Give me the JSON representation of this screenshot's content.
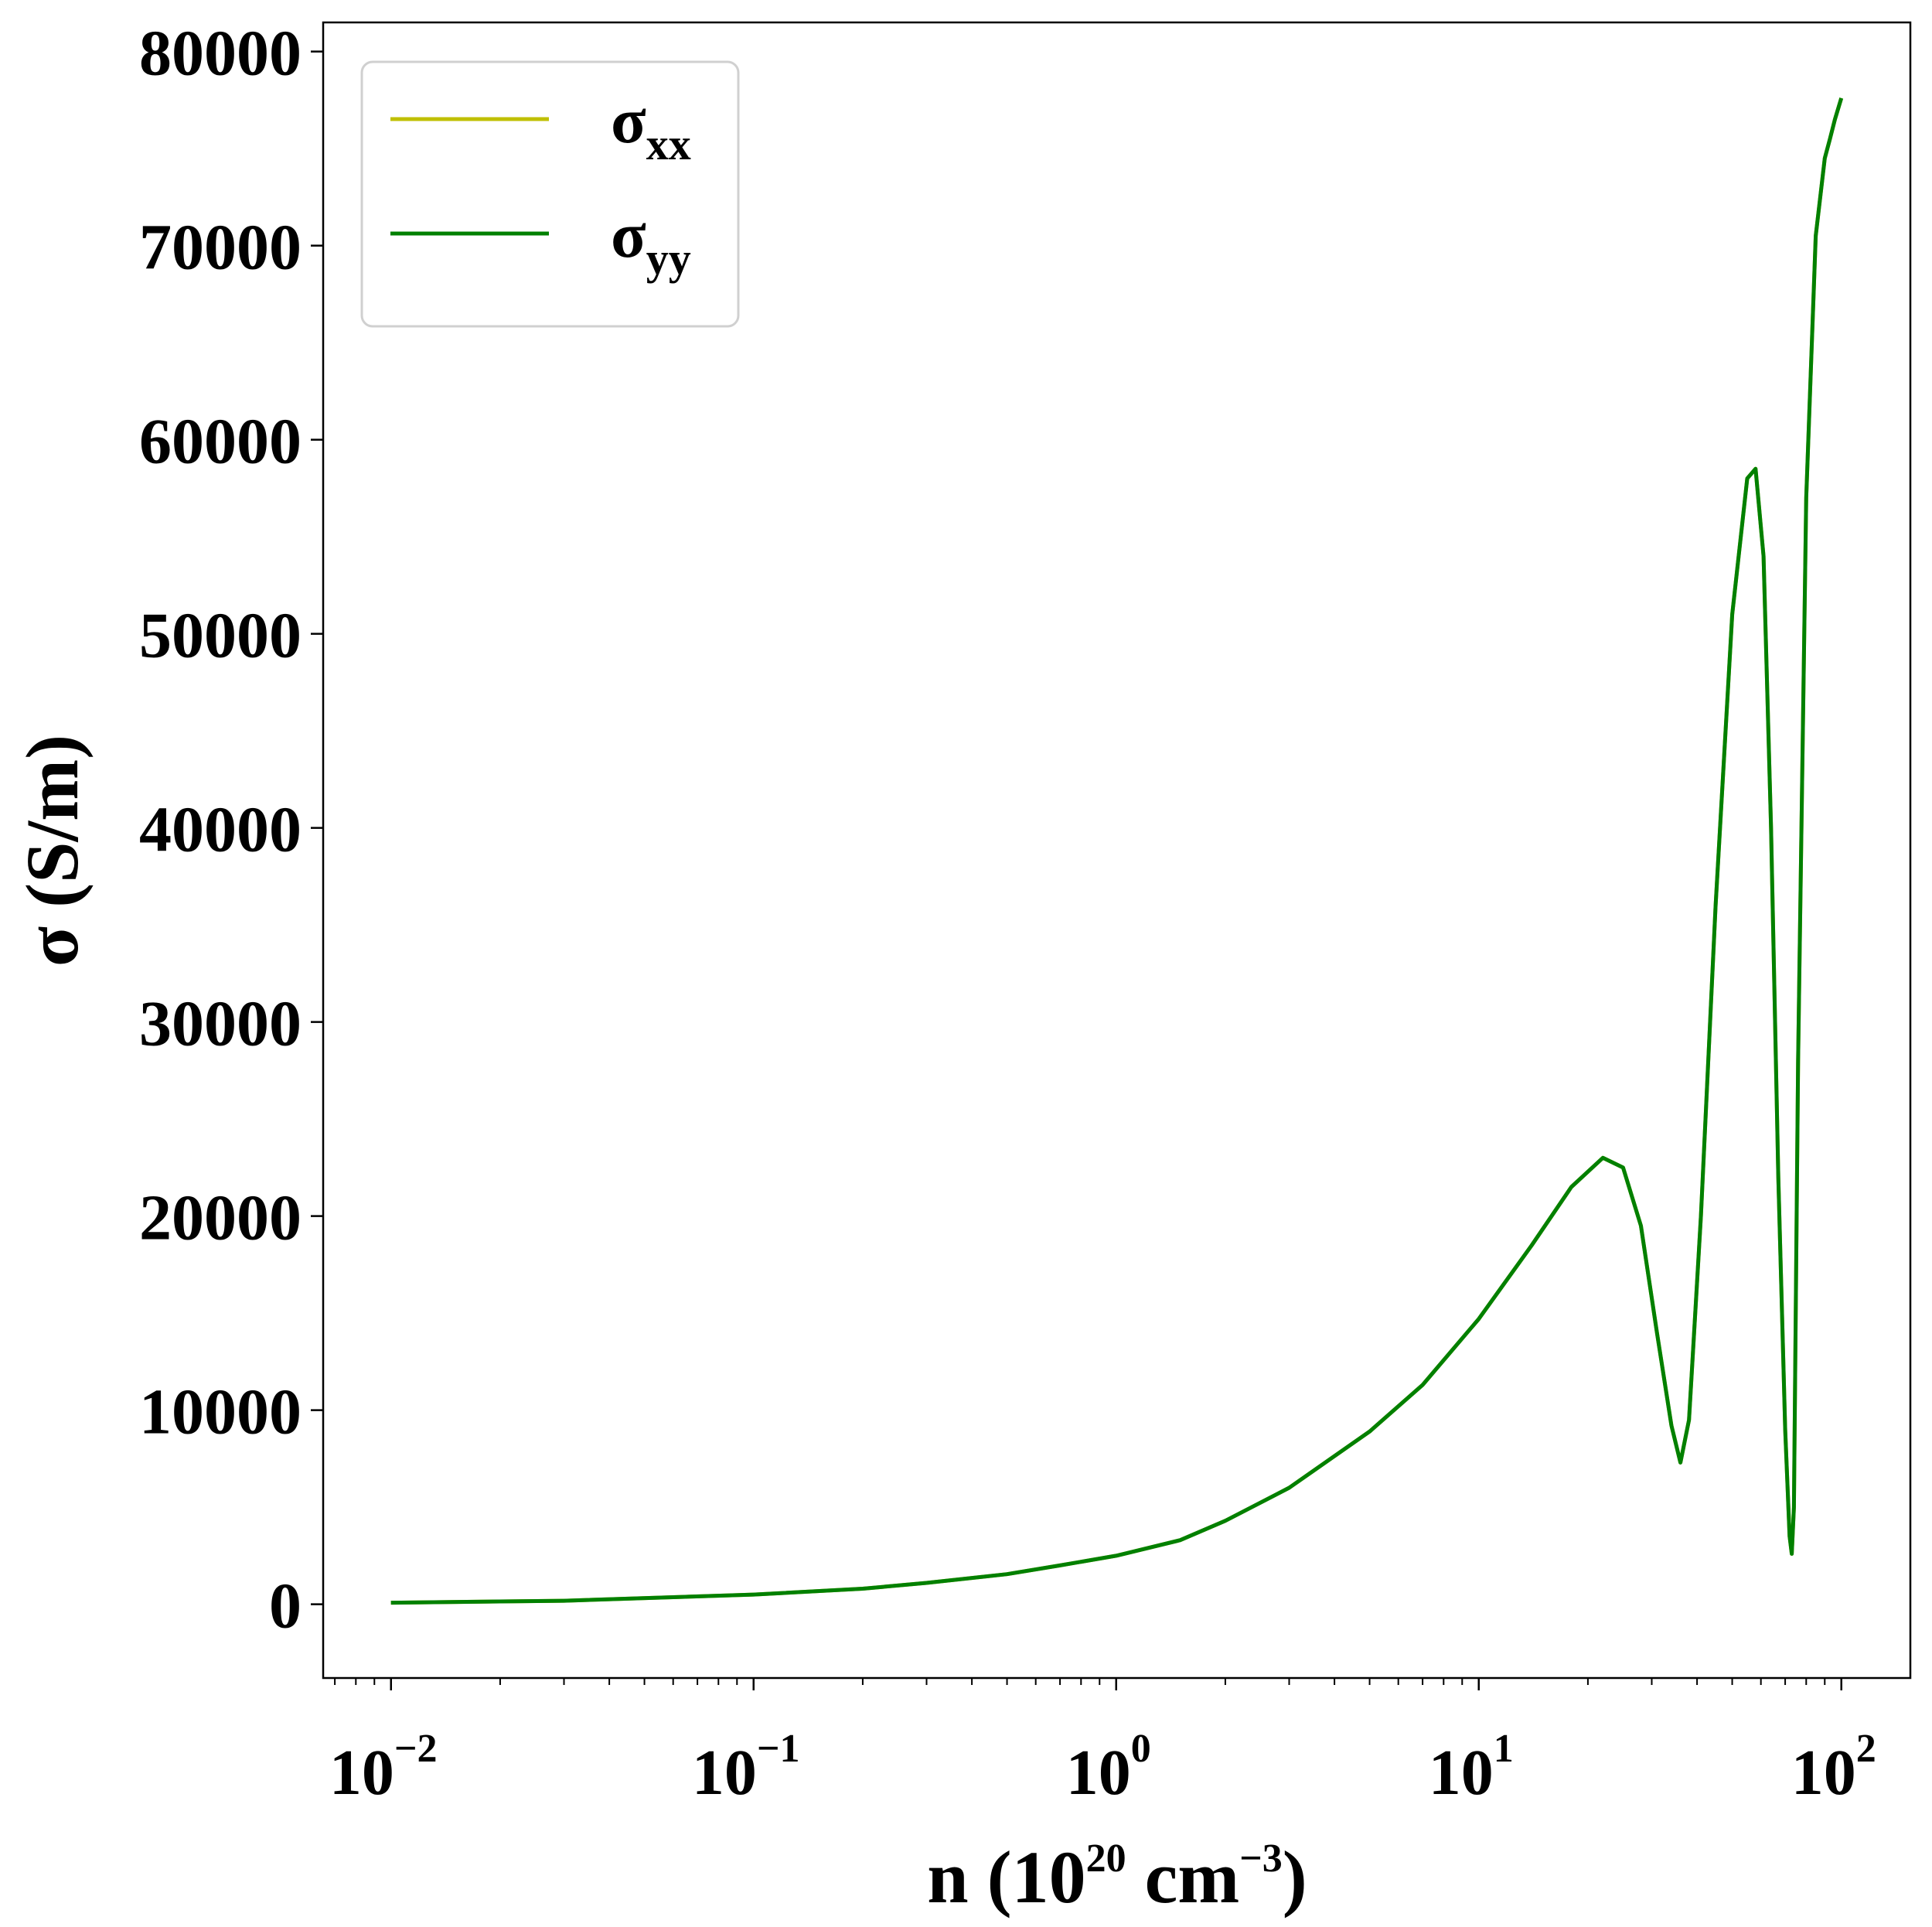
{
  "chart_data": {
    "type": "line",
    "xlabel": {
      "base": "n (10",
      "exp1": "20",
      "mid": " cm",
      "exp2": "−3",
      "end": ")"
    },
    "ylabel": "σ (S/m)",
    "xscale": "log",
    "xlim": [
      0.0065,
      155
    ],
    "ylim": [
      -3800,
      81500
    ],
    "grid": false,
    "legend_position": "top-left",
    "x_ticks": [
      {
        "value": 0.01,
        "base": "10",
        "exp": "−2"
      },
      {
        "value": 0.1,
        "base": "10",
        "exp": "−1"
      },
      {
        "value": 1,
        "base": "10",
        "exp": "0"
      },
      {
        "value": 10,
        "base": "10",
        "exp": "1"
      },
      {
        "value": 100,
        "base": "10",
        "exp": "2"
      }
    ],
    "y_ticks": [
      {
        "value": 0,
        "label": "0"
      },
      {
        "value": 10000,
        "label": "10000"
      },
      {
        "value": 20000,
        "label": "20000"
      },
      {
        "value": 30000,
        "label": "30000"
      },
      {
        "value": 40000,
        "label": "40000"
      },
      {
        "value": 50000,
        "label": "50000"
      },
      {
        "value": 60000,
        "label": "60000"
      },
      {
        "value": 70000,
        "label": "70000"
      },
      {
        "value": 80000,
        "label": "80000"
      }
    ],
    "series": [
      {
        "name": "σxx",
        "name_base": "σ",
        "name_sub": "xx",
        "color": "#bfbf00",
        "x": [
          0.01,
          0.03,
          0.1,
          0.2,
          0.3,
          0.5,
          0.7,
          1,
          1.5,
          2,
          3,
          5,
          7,
          10,
          14,
          18,
          22,
          25,
          28,
          31,
          34,
          36,
          38,
          41,
          45,
          50,
          55,
          58,
          61,
          64,
          67,
          70,
          72,
          73,
          74,
          76,
          80,
          85,
          90,
          93,
          96,
          100
        ],
        "y": [
          80,
          180,
          500,
          800,
          1100,
          1550,
          2000,
          2500,
          3300,
          4300,
          6000,
          8900,
          11300,
          14700,
          18500,
          21500,
          23000,
          22500,
          19500,
          14000,
          9200,
          7300,
          9500,
          20000,
          36000,
          51000,
          58000,
          58500,
          54000,
          40000,
          22000,
          9000,
          3500,
          2600,
          5000,
          28000,
          57000,
          70500,
          74500,
          75500,
          76500,
          77600
        ]
      },
      {
        "name": "σyy",
        "name_base": "σ",
        "name_sub": "yy",
        "color": "#008000",
        "x": [
          0.01,
          0.03,
          0.1,
          0.2,
          0.3,
          0.5,
          0.7,
          1,
          1.5,
          2,
          3,
          5,
          7,
          10,
          14,
          18,
          22,
          25,
          28,
          31,
          34,
          36,
          38,
          41,
          45,
          50,
          55,
          58,
          61,
          64,
          67,
          70,
          72,
          73,
          74,
          76,
          80,
          85,
          90,
          93,
          96,
          100
        ],
        "y": [
          80,
          180,
          500,
          800,
          1100,
          1550,
          2000,
          2500,
          3300,
          4300,
          6000,
          8900,
          11300,
          14700,
          18500,
          21500,
          23000,
          22500,
          19500,
          14000,
          9200,
          7300,
          9500,
          20000,
          36000,
          51000,
          58000,
          58500,
          54000,
          40000,
          22000,
          9000,
          3500,
          2600,
          5000,
          28000,
          57000,
          70500,
          74500,
          75500,
          76500,
          77600
        ]
      }
    ]
  }
}
